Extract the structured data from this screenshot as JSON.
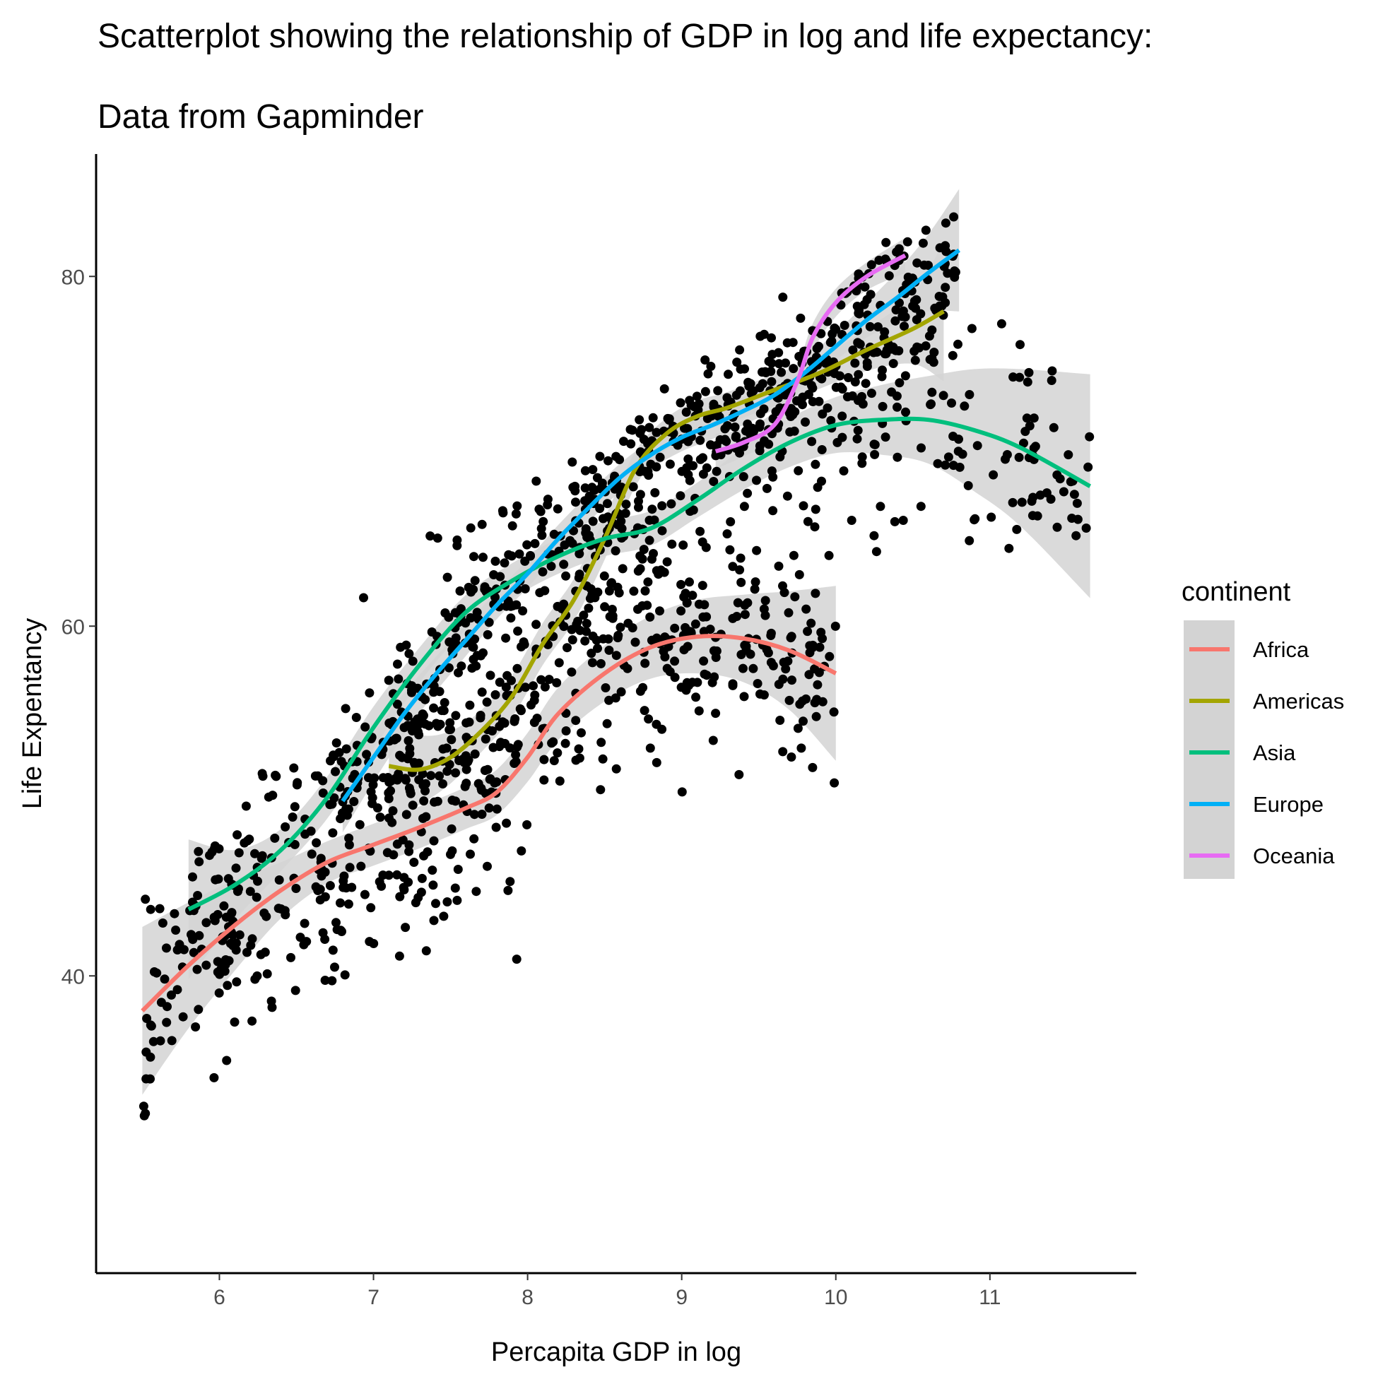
{
  "chart_data": {
    "type": "scatter",
    "title_line1": "Scatterplot showing the relationship of GDP in log and life expectancy:",
    "title_line2": "Data from Gapminder",
    "xlabel": "Percapita GDP in log",
    "ylabel": "Life Expentancy",
    "xlim": [
      5.2,
      11.95
    ],
    "ylim": [
      23,
      87
    ],
    "x_ticks": [
      6,
      7,
      8,
      9,
      10,
      11
    ],
    "y_ticks": [
      40,
      60,
      80
    ],
    "grid": false,
    "legend_title": "continent",
    "legend_position": "right",
    "point_color": "#000000",
    "band_color": "#d3d3d3",
    "series": [
      {
        "name": "Africa",
        "color": "#F8766D",
        "x": [
          5.5,
          5.8,
          6.1,
          6.4,
          6.7,
          7.0,
          7.3,
          7.6,
          7.8,
          8.0,
          8.2,
          8.5,
          8.8,
          9.1,
          9.4,
          9.7,
          10.0
        ],
        "y": [
          38.0,
          40.6,
          42.9,
          44.9,
          46.5,
          47.5,
          48.5,
          49.6,
          50.5,
          52.5,
          55.0,
          57.3,
          58.8,
          59.4,
          59.3,
          58.6,
          57.3
        ],
        "band": [
          4.8,
          3.6,
          2.6,
          1.6,
          1.2,
          1.2,
          1.2,
          1.2,
          1.3,
          1.4,
          1.5,
          1.6,
          1.8,
          2.1,
          2.5,
          3.4,
          5.0
        ]
      },
      {
        "name": "Americas",
        "color": "#A3A500",
        "x": [
          7.1,
          7.3,
          7.5,
          7.7,
          7.9,
          8.1,
          8.3,
          8.5,
          8.7,
          8.9,
          9.1,
          9.3,
          9.6,
          9.9,
          10.2,
          10.5,
          10.7
        ],
        "y": [
          52.0,
          51.8,
          52.5,
          54.0,
          56.0,
          59.0,
          61.5,
          65.0,
          69.0,
          71.0,
          72.0,
          72.5,
          73.5,
          74.5,
          75.8,
          77.0,
          78.0
        ],
        "band": [
          3.0,
          2.0,
          1.5,
          1.2,
          1.2,
          1.2,
          1.2,
          1.2,
          1.0,
          0.9,
          0.9,
          0.9,
          0.9,
          0.9,
          1.2,
          2.0,
          4.0
        ]
      },
      {
        "name": "Asia",
        "color": "#00BF7D",
        "x": [
          5.8,
          6.1,
          6.4,
          6.7,
          7.0,
          7.3,
          7.6,
          7.9,
          8.2,
          8.5,
          8.8,
          9.1,
          9.4,
          9.7,
          10.0,
          10.3,
          10.6,
          10.9,
          11.2,
          11.65
        ],
        "y": [
          43.8,
          45.2,
          47.2,
          50.2,
          54.2,
          57.8,
          60.8,
          62.6,
          64.0,
          65.0,
          65.6,
          67.2,
          69.0,
          70.5,
          71.5,
          71.8,
          71.8,
          71.2,
          70.2,
          68.0
        ],
        "band": [
          4.0,
          2.0,
          1.2,
          1.2,
          1.2,
          1.0,
          1.0,
          1.0,
          1.0,
          1.0,
          1.0,
          1.0,
          1.2,
          1.4,
          1.6,
          2.0,
          2.5,
          3.5,
          4.5,
          6.4
        ]
      },
      {
        "name": "Europe",
        "color": "#00B0F6",
        "x": [
          6.8,
          7.0,
          7.2,
          7.4,
          7.6,
          7.8,
          8.0,
          8.2,
          8.4,
          8.6,
          8.8,
          9.0,
          9.2,
          9.4,
          9.6,
          9.8,
          10.0,
          10.2,
          10.4,
          10.6,
          10.8
        ],
        "y": [
          50.0,
          52.5,
          55.0,
          57.2,
          59.2,
          61.2,
          63.0,
          65.0,
          66.8,
          68.5,
          69.8,
          70.8,
          71.5,
          72.3,
          73.2,
          74.5,
          76.0,
          77.5,
          78.8,
          80.2,
          81.5
        ],
        "band": [
          1.8,
          1.4,
          1.2,
          1.0,
          0.9,
          0.8,
          0.8,
          0.8,
          0.8,
          0.8,
          0.8,
          0.8,
          0.8,
          0.8,
          0.8,
          0.8,
          0.8,
          1.0,
          1.5,
          2.2,
          3.5
        ]
      },
      {
        "name": "Oceania",
        "color": "#E76BF3",
        "x": [
          9.22,
          9.4,
          9.6,
          9.75,
          9.85,
          10.0,
          10.2,
          10.45
        ],
        "y": [
          70.0,
          70.5,
          71.5,
          74.0,
          76.5,
          78.5,
          80.0,
          81.2
        ],
        "band": [
          1.0,
          0.8,
          0.8,
          0.8,
          0.8,
          0.8,
          0.8,
          1.0
        ]
      }
    ]
  }
}
